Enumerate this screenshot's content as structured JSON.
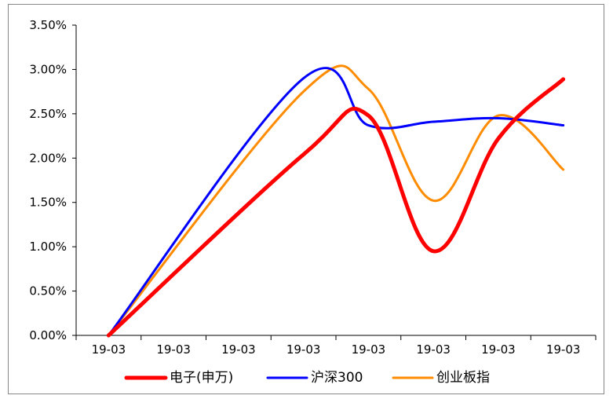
{
  "chart_data": {
    "type": "line",
    "title": "",
    "xlabel": "",
    "ylabel": "",
    "categories": [
      "19-03",
      "19-03",
      "19-03",
      "19-03",
      "19-03",
      "19-03",
      "19-03",
      "19-03"
    ],
    "y_tick_labels": [
      "0.00%",
      "0.50%",
      "1.00%",
      "1.50%",
      "2.00%",
      "2.50%",
      "3.00%",
      "3.50%"
    ],
    "ylim": [
      0,
      3.5
    ],
    "y_unit": "%",
    "grid": false,
    "legend_position": "bottom",
    "series": [
      {
        "name": "电子(申万)",
        "color": "#ff0000",
        "values": [
          0.0,
          null,
          null,
          2.04,
          2.48,
          0.95,
          2.22,
          2.89
        ]
      },
      {
        "name": "沪深300",
        "color": "#0000ff",
        "values": [
          0.0,
          null,
          null,
          2.9,
          2.37,
          2.41,
          2.45,
          2.37
        ]
      },
      {
        "name": "创业板指",
        "color": "#ff8c00",
        "values": [
          0.0,
          null,
          null,
          2.75,
          2.78,
          1.52,
          2.48,
          1.87
        ]
      }
    ]
  }
}
